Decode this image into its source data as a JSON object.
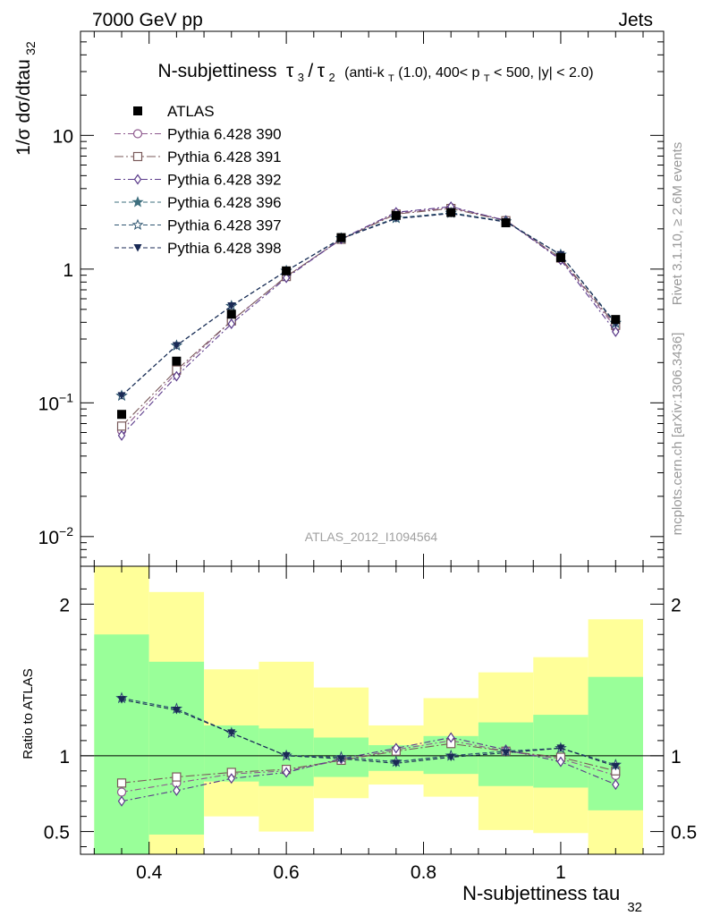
{
  "header": {
    "left": "7000 GeV pp",
    "right": "Jets"
  },
  "side_labels": {
    "rivet": "Rivet 3.1.10, ≥ 2.6M events",
    "mcplots": "mcplots.cern.ch [arXiv:1306.3436]"
  },
  "chart_data": [
    {
      "type": "line",
      "title_parts": {
        "main": "N-subjettiness",
        "tau3": "τ",
        "sub3": "3",
        "slash": "/",
        "tau2": "τ",
        "sub2": "2",
        "cuts_a": "(anti-k",
        "cuts_a_sub": "T",
        "cuts_b": "(1.0), 400< p",
        "cuts_b_sub": "T",
        "cuts_c": " < 500, |y| < 2.0)"
      },
      "ylabel_parts": {
        "main": "1/σ dσ/dtau",
        "sub": "32"
      },
      "watermark": "ATLAS_2012_I1094564",
      "yscale": "log",
      "ylim": [
        0.006,
        60
      ],
      "xlim": [
        0.3,
        1.15
      ],
      "y_ticks": [
        {
          "value": 0.01,
          "base": "10",
          "exp": "−2"
        },
        {
          "value": 0.1,
          "base": "10",
          "exp": "−1"
        },
        {
          "value": 1,
          "base": "1",
          "exp": ""
        },
        {
          "value": 10,
          "base": "10",
          "exp": ""
        }
      ],
      "x": [
        0.36,
        0.44,
        0.52,
        0.6,
        0.68,
        0.76,
        0.84,
        0.92,
        1.0,
        1.08
      ],
      "data_series": {
        "name": "ATLAS",
        "values": [
          0.082,
          0.205,
          0.46,
          0.97,
          1.72,
          2.52,
          2.65,
          2.22,
          1.22,
          0.42
        ]
      },
      "legend_position": "top-left",
      "series": [
        {
          "name": "Pythia 6.428 390",
          "marker": "circle-open",
          "dash": "dashdot",
          "color": "#8e5a8e",
          "values": [
            0.062,
            0.168,
            0.41,
            0.88,
            1.67,
            2.62,
            2.88,
            2.32,
            1.19,
            0.365
          ]
        },
        {
          "name": "Pythia 6.428 391",
          "marker": "square-open",
          "dash": "dashdotlong",
          "color": "#7a5a5a",
          "values": [
            0.067,
            0.176,
            0.41,
            0.88,
            1.67,
            2.58,
            2.84,
            2.3,
            1.21,
            0.38
          ]
        },
        {
          "name": "Pythia 6.428 392",
          "marker": "diamond-open",
          "dash": "dashdot",
          "color": "#5a3a8a",
          "values": [
            0.057,
            0.158,
            0.39,
            0.86,
            1.68,
            2.66,
            2.93,
            2.31,
            1.17,
            0.34
          ]
        },
        {
          "name": "Pythia 6.428 396",
          "marker": "star-filled",
          "dash": "dashed",
          "color": "#3e6f7e",
          "values": [
            0.113,
            0.268,
            0.53,
            0.97,
            1.7,
            2.4,
            2.64,
            2.27,
            1.28,
            0.395
          ]
        },
        {
          "name": "Pythia 6.428 397",
          "marker": "star-open",
          "dash": "dashed",
          "color": "#2e5570",
          "values": [
            0.113,
            0.268,
            0.53,
            0.97,
            1.7,
            2.42,
            2.63,
            2.27,
            1.28,
            0.395
          ]
        },
        {
          "name": "Pythia 6.428 398",
          "marker": "triangle-down",
          "dash": "dashed",
          "color": "#1a2a55",
          "values": [
            0.113,
            0.268,
            0.53,
            0.97,
            1.69,
            2.38,
            2.6,
            2.25,
            1.28,
            0.39
          ]
        }
      ]
    },
    {
      "type": "line",
      "ylabel": "Ratio to ATLAS",
      "xlabel_parts": {
        "main": "N-subjettiness tau",
        "sub": "32"
      },
      "xlim": [
        0.3,
        1.15
      ],
      "ylim": [
        0.35,
        2.25
      ],
      "x_ticks": [
        {
          "value": 0.4,
          "label": "0.4"
        },
        {
          "value": 0.6,
          "label": "0.6"
        },
        {
          "value": 0.8,
          "label": "0.8"
        },
        {
          "value": 1.0,
          "label": "1"
        }
      ],
      "y_ticks": [
        {
          "value": 0.5,
          "label": "0.5"
        },
        {
          "value": 1,
          "label": "1"
        },
        {
          "value": 2,
          "label": "2"
        }
      ],
      "reference_line": 1,
      "bins": [
        {
          "lo": 0.32,
          "hi": 0.4,
          "g_lo": 0.35,
          "g_hi": 1.8,
          "y_lo": 0.35,
          "y_hi": 2.25
        },
        {
          "lo": 0.4,
          "hi": 0.48,
          "g_lo": 0.48,
          "g_hi": 1.62,
          "y_lo": 0.35,
          "y_hi": 2.08
        },
        {
          "lo": 0.48,
          "hi": 0.56,
          "g_lo": 0.83,
          "g_hi": 1.2,
          "y_lo": 0.6,
          "y_hi": 1.57
        },
        {
          "lo": 0.56,
          "hi": 0.64,
          "g_lo": 0.8,
          "g_hi": 1.18,
          "y_lo": 0.5,
          "y_hi": 1.62
        },
        {
          "lo": 0.64,
          "hi": 0.72,
          "g_lo": 0.86,
          "g_hi": 1.12,
          "y_lo": 0.72,
          "y_hi": 1.45
        },
        {
          "lo": 0.72,
          "hi": 0.8,
          "g_lo": 0.9,
          "g_hi": 1.07,
          "y_lo": 0.81,
          "y_hi": 1.2
        },
        {
          "lo": 0.8,
          "hi": 0.88,
          "g_lo": 0.88,
          "g_hi": 1.13,
          "y_lo": 0.73,
          "y_hi": 1.38
        },
        {
          "lo": 0.88,
          "hi": 0.96,
          "g_lo": 0.8,
          "g_hi": 1.22,
          "y_lo": 0.51,
          "y_hi": 1.55
        },
        {
          "lo": 0.96,
          "hi": 1.04,
          "g_lo": 0.79,
          "g_hi": 1.27,
          "y_lo": 0.49,
          "y_hi": 1.65
        },
        {
          "lo": 1.04,
          "hi": 1.12,
          "g_lo": 0.64,
          "g_hi": 1.52,
          "y_lo": 0.35,
          "y_hi": 1.9
        }
      ],
      "series": [
        {
          "name": "Pythia 6.428 390",
          "values": [
            0.76,
            0.82,
            0.88,
            0.9,
            0.97,
            1.04,
            1.1,
            1.03,
            0.98,
            0.87
          ]
        },
        {
          "name": "Pythia 6.428 391",
          "values": [
            0.82,
            0.86,
            0.89,
            0.91,
            0.97,
            1.03,
            1.08,
            1.03,
            0.99,
            0.9
          ]
        },
        {
          "name": "Pythia 6.428 392",
          "values": [
            0.7,
            0.77,
            0.85,
            0.89,
            0.98,
            1.05,
            1.12,
            1.04,
            0.96,
            0.81
          ]
        },
        {
          "name": "Pythia 6.428 396",
          "values": [
            1.38,
            1.31,
            1.15,
            1.0,
            0.99,
            0.96,
            1.0,
            1.03,
            1.05,
            0.94
          ]
        },
        {
          "name": "Pythia 6.428 397",
          "values": [
            1.38,
            1.31,
            1.15,
            1.0,
            0.99,
            0.96,
            1.0,
            1.03,
            1.05,
            0.94
          ]
        },
        {
          "name": "Pythia 6.428 398",
          "values": [
            1.37,
            1.3,
            1.15,
            1.0,
            0.98,
            0.95,
            0.99,
            1.02,
            1.05,
            0.93
          ]
        }
      ]
    }
  ]
}
